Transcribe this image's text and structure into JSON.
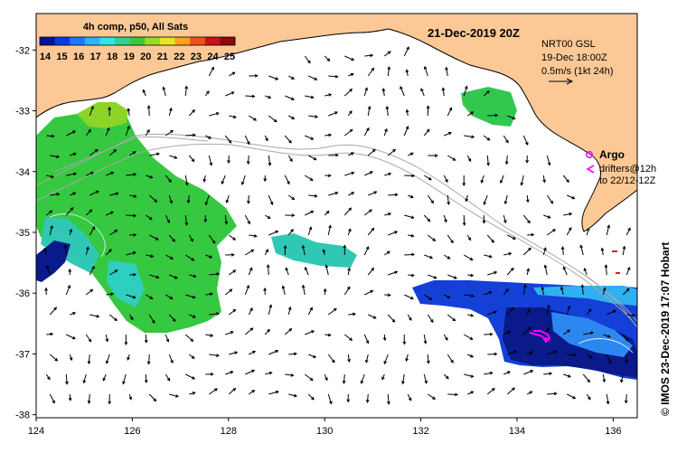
{
  "map": {
    "colorbar": {
      "title": "4h comp, p50, All Sats",
      "ticks": [
        "14",
        "15",
        "16",
        "17",
        "18",
        "19",
        "20",
        "21",
        "22",
        "23",
        "24",
        "25"
      ],
      "min": 14,
      "max": 25,
      "stops": [
        "#08109c",
        "#0a3ce0",
        "#1e78ff",
        "#2cb4ff",
        "#2ee6e6",
        "#32d28c",
        "#3cc83c",
        "#96dc28",
        "#e6e61e",
        "#ffa01e",
        "#f0501e",
        "#c81414",
        "#8c0a0a"
      ]
    },
    "date": "21-Dec-2019 20Z",
    "current_info": {
      "line1": "NRT00 GSL",
      "line2": "19-Dec 18:00Z",
      "scale_label": "0.5m/s (1kt 24h)"
    },
    "argo": {
      "label": "Argo",
      "drifters_line1": "drifters@12h",
      "drifters_line2": "to 22/12-12Z",
      "color": "#ff00ff"
    },
    "lat_axis": {
      "ticks": [
        "-32",
        "-33",
        "-34",
        "-35",
        "-36",
        "-37",
        "-38"
      ],
      "values": [
        -32,
        -33,
        -34,
        -35,
        -36,
        -37,
        -38
      ],
      "min": -38.05,
      "max": -31.4
    },
    "lon_axis": {
      "ticks": [
        "124",
        "126",
        "128",
        "130",
        "132",
        "134",
        "136"
      ],
      "values": [
        124,
        126,
        128,
        130,
        132,
        134,
        136
      ],
      "min": 124,
      "max": 136.5
    },
    "credit": "© IMOS 23-Dec-2019 17:07 Hobart",
    "colors": {
      "land": "#fcc996",
      "ocean": "#ffffff",
      "bathymetry": "#a8a8a8",
      "arrows": "#000000"
    }
  }
}
